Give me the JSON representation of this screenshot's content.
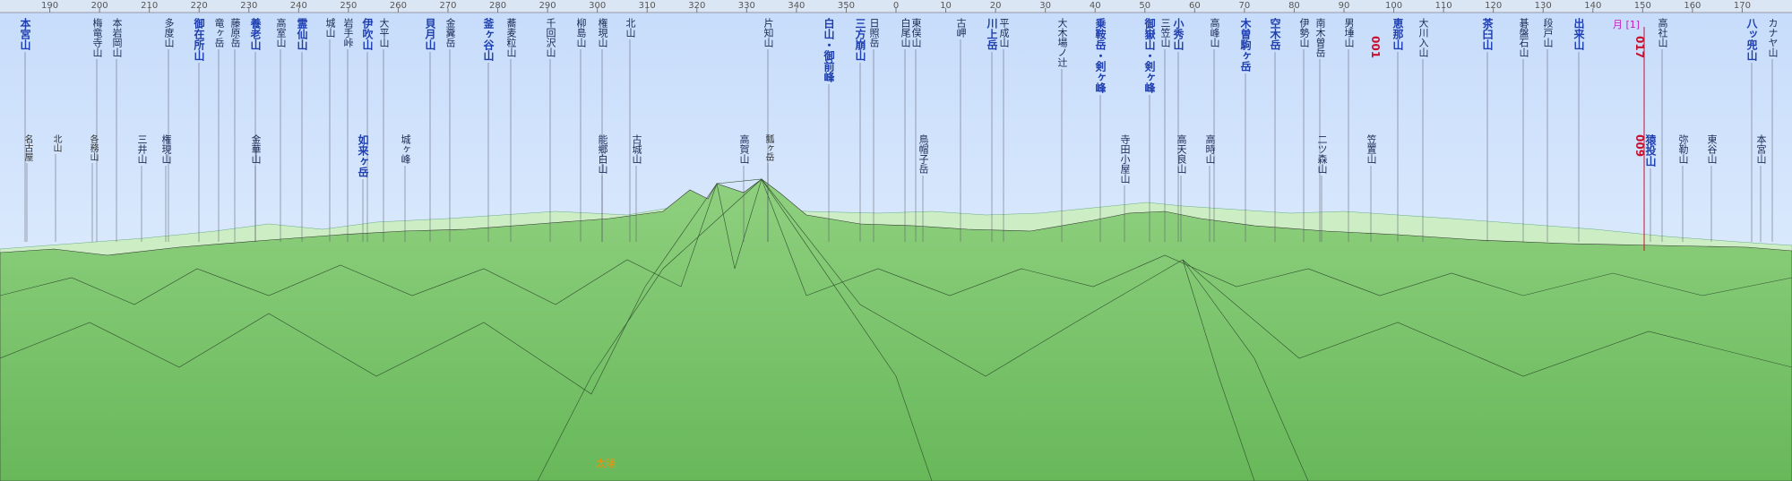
{
  "bearing_ticks": [
    190,
    200,
    210,
    220,
    230,
    240,
    250,
    260,
    270,
    280,
    290,
    300,
    310,
    320,
    330,
    340,
    350,
    0,
    10,
    20,
    30,
    40,
    50,
    60,
    70,
    80,
    90,
    100,
    110,
    120,
    130,
    140,
    150,
    160,
    170
  ],
  "peaks_top": [
    "本宮山",
    "梅竜寺山",
    "本岩岡山",
    "多度山",
    "御在所山",
    "竜ヶ岳",
    "藤原岳",
    "養老山",
    "高室山",
    "霊仙山",
    "城山",
    "岩手峠",
    "伊吹山",
    "大平山",
    "貝月山",
    "金糞岳",
    "釜ヶ谷山",
    "蕎麦粒山",
    "千回沢山",
    "柳島山",
    "権現山",
    "北山",
    "片知山",
    "白山・御前峰",
    "三方崩山",
    "日照岳",
    "白尾山",
    "東俣山",
    "古岬",
    "川上岳",
    "平成山",
    "大木場ノ辻",
    "乗鞍岳・剣ヶ峰",
    "御嶽山・剣ヶ峰",
    "三笠山",
    "小秀山",
    "高峰山",
    "木曽駒ヶ岳",
    "空木岳",
    "伊勢山",
    "南木曽岳",
    "男埵山",
    "恵那山",
    "大川入山",
    "茶臼山",
    "碁盤石山",
    "段戸山",
    "出来山",
    "高社山",
    "八ッ兜山",
    "カナヤ山"
  ],
  "peaks_low": [
    "名古屋",
    "北山",
    "各務山",
    "三井山",
    "権現山",
    "金華山",
    "如来ヶ岳",
    "城ヶ峰",
    "能郷白山",
    "古城山",
    "高賀山",
    "瓢ヶ岳",
    "鳥帽子岳",
    "寺田小屋山",
    "高天良山",
    "高時山",
    "二ツ森山",
    "笠置山",
    "猿投山",
    "弥勒山",
    "東谷山",
    "本宮山"
  ],
  "markers": [
    "001",
    "009",
    "017"
  ],
  "moon": "月 [1]",
  "sun": "太陽"
}
